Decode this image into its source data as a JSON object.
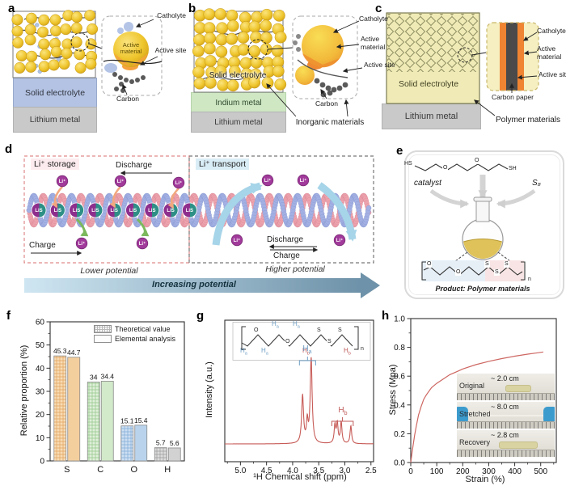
{
  "figure": {
    "panel_labels": {
      "a": "a",
      "b": "b",
      "c": "c",
      "d": "d",
      "e": "e",
      "f": "f",
      "g": "g",
      "h": "h"
    }
  },
  "panel_a": {
    "solid_electrolyte": "Solid electrolyte",
    "lithium_metal": "Lithium metal",
    "active_material": "Active material",
    "catholyte": "Catholyte",
    "active_site": "Active site",
    "carbon": "Carbon"
  },
  "panel_b": {
    "solid_electrolyte": "Solid electrolyte",
    "indium_metal": "Indium metal",
    "lithium_metal": "Lithium metal",
    "catholyte": "Catholyte",
    "active_material": "Active material",
    "active_site": "Active site",
    "carbon": "Carbon",
    "inorganic_materials": "Inorganic materials"
  },
  "panel_c": {
    "solid_electrolyte": "Solid electrolyte",
    "lithium_metal": "Lithium metal",
    "catholyte": "Catholyte",
    "active_material": "Active material",
    "active_site": "Active site",
    "carbon_paper": "Carbon paper",
    "polymer_materials": "Polymer materials"
  },
  "panel_d": {
    "storage_label": "Li⁺ storage",
    "transport_label": "Li⁺ transport",
    "discharge": "Discharge",
    "charge": "Charge",
    "li_ion": "Li⁺",
    "bead_text": "LiS",
    "lower_potential": "Lower potential",
    "higher_potential": "Higher potential",
    "increasing_potential": "Increasing potential"
  },
  "panel_e": {
    "hs": "HS",
    "sh": "SH",
    "o": "O",
    "s": "S",
    "n": "n",
    "catalyst": "catalyst",
    "s8": "S₈",
    "product": "Product: Polymer materials"
  },
  "panel_g_inset": {
    "h": "H",
    "sub_a": "a",
    "sub_b": "b",
    "o": "O",
    "s": "S",
    "n": "n"
  },
  "chart_data": [
    {
      "id": "f",
      "type": "bar",
      "categories": [
        "S",
        "C",
        "O",
        "H"
      ],
      "series": [
        {
          "name": "Theoretical value",
          "style": "crosshatch",
          "values": [
            45.3,
            34,
            15.1,
            5.7
          ]
        },
        {
          "name": "Elemental analysis",
          "style": "solid",
          "values": [
            44.7,
            34.4,
            15.4,
            5.6
          ]
        }
      ],
      "value_labels": [
        [
          "45.3",
          "44.7"
        ],
        [
          "34",
          "34.4"
        ],
        [
          "15.1",
          "15.4"
        ],
        [
          "5.7",
          "5.6"
        ]
      ],
      "bar_colors": [
        {
          "base": "#f8dcb4",
          "line": "#e3a35f",
          "solid": "#f4cf9e"
        },
        {
          "base": "#e0efd9",
          "line": "#93c88b",
          "solid": "#d2e9ca"
        },
        {
          "base": "#cdDFF2",
          "line": "#82abd6",
          "solid": "#b9d3ec"
        },
        {
          "base": "#dcdcdc",
          "line": "#9c9c9c",
          "solid": "#d2d2d2"
        }
      ],
      "ylabel": "Relative proportion (%)",
      "ylim": [
        0,
        60
      ],
      "yticks": [
        0,
        10,
        20,
        30,
        40,
        50,
        60
      ],
      "legend_position": "top-right"
    },
    {
      "id": "g",
      "type": "line",
      "xlabel": "¹H Chemical shift (ppm)",
      "ylabel": "Intensity (a.u.)",
      "x_range": [
        5.3,
        2.45
      ],
      "xticks": [
        "5.0",
        "4.5",
        "4.0",
        "3.5",
        "3.0",
        "2.5"
      ],
      "xtick_values": [
        5.0,
        4.5,
        4.0,
        3.5,
        3.0,
        2.5
      ],
      "line_color": "#c75b57",
      "peaks": [
        {
          "center": 3.81,
          "height": 0.56,
          "width": 0.022
        },
        {
          "center": 3.72,
          "height": 0.24,
          "width": 0.018
        },
        {
          "center": 3.645,
          "height": 1.0,
          "width": 0.022
        },
        {
          "center": 3.19,
          "height": 0.21,
          "width": 0.018
        },
        {
          "center": 3.145,
          "height": 0.23,
          "width": 0.018
        },
        {
          "center": 3.07,
          "height": 0.25,
          "width": 0.018
        },
        {
          "center": 2.885,
          "height": 0.21,
          "width": 0.018
        }
      ],
      "annotations": [
        {
          "label": "Ha",
          "x_from": 3.87,
          "x_to": 3.56,
          "color": "#6f9fc4"
        },
        {
          "label": "Hb",
          "x_from": 3.25,
          "x_to": 2.84,
          "color": "#c05a5a"
        }
      ]
    },
    {
      "id": "h",
      "type": "line",
      "xlabel": "Strain (%)",
      "ylabel": "Stress (Mpa)",
      "xlim": [
        0,
        560
      ],
      "ylim": [
        0,
        1.0
      ],
      "xticks": [
        0,
        100,
        200,
        300,
        400,
        500
      ],
      "yticks": [
        "0.0",
        "0.2",
        "0.4",
        "0.6",
        "0.8",
        "1.0"
      ],
      "line_color": "#cd6661",
      "points": [
        [
          0,
          0
        ],
        [
          5,
          0.07
        ],
        [
          10,
          0.13
        ],
        [
          15,
          0.19
        ],
        [
          20,
          0.24
        ],
        [
          30,
          0.33
        ],
        [
          40,
          0.39
        ],
        [
          50,
          0.44
        ],
        [
          60,
          0.47
        ],
        [
          80,
          0.52
        ],
        [
          100,
          0.55
        ],
        [
          125,
          0.58
        ],
        [
          150,
          0.61
        ],
        [
          175,
          0.63
        ],
        [
          200,
          0.65
        ],
        [
          250,
          0.68
        ],
        [
          300,
          0.703
        ],
        [
          350,
          0.722
        ],
        [
          400,
          0.739
        ],
        [
          450,
          0.753
        ],
        [
          480,
          0.76
        ],
        [
          510,
          0.768
        ]
      ],
      "inset_rows": [
        {
          "label": "Original",
          "length": "~ 2.0 cm",
          "gloves": false
        },
        {
          "label": "Stretched",
          "length": "~ 8.0 cm",
          "gloves": true
        },
        {
          "label": "Recovery",
          "length": "~ 2.8 cm",
          "gloves": false
        }
      ]
    }
  ]
}
